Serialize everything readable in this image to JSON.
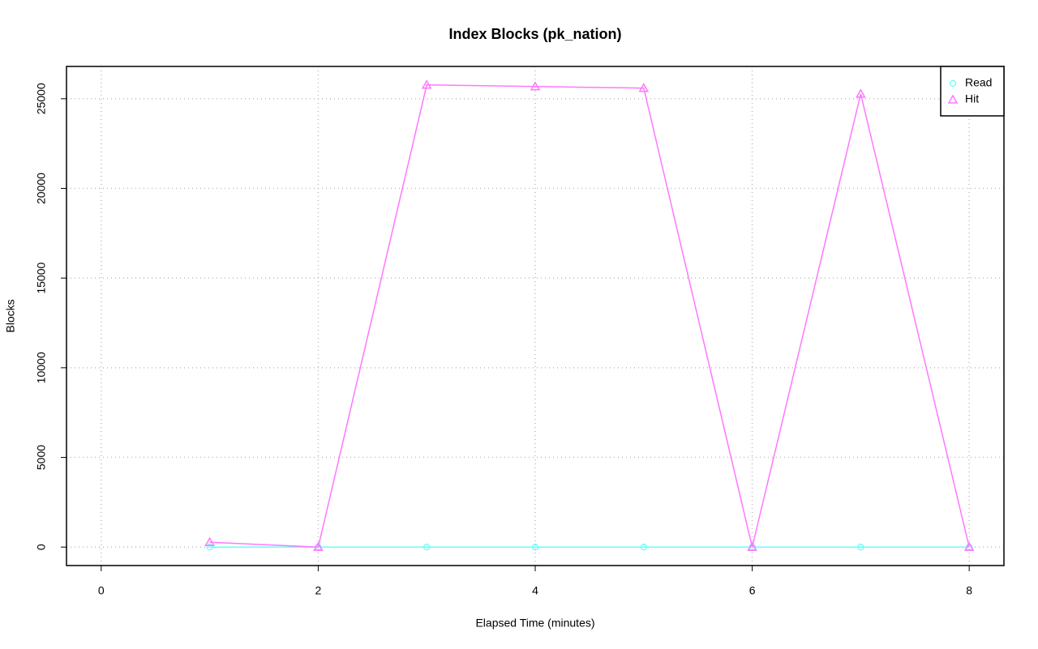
{
  "chart_data": {
    "type": "line",
    "title": "Index Blocks (pk_nation)",
    "x_label": "Elapsed Time (minutes)",
    "y_label": "Blocks",
    "x": [
      1,
      2,
      3,
      4,
      5,
      6,
      7,
      8
    ],
    "series": [
      {
        "name": "Read",
        "color": "#66ffff",
        "marker": "circle",
        "values": [
          0,
          0,
          0,
          0,
          0,
          0,
          0,
          0
        ]
      },
      {
        "name": "Hit",
        "color": "#ff77ff",
        "marker": "triangle",
        "values": [
          270,
          0,
          25770,
          25680,
          25590,
          0,
          25270,
          0
        ]
      }
    ],
    "xlim": [
      -0.32,
      8.32
    ],
    "xticks": [
      0,
      2,
      4,
      6,
      8
    ],
    "ylim": [
      -1030,
      26800
    ],
    "yticks": [
      0,
      5000,
      10000,
      15000,
      20000,
      25000
    ],
    "grid": true,
    "legend": "top-right"
  }
}
